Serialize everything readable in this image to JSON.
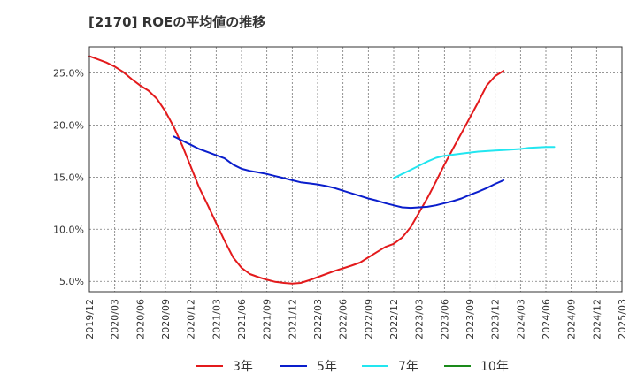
{
  "chart_data": {
    "type": "line",
    "title": "[2170]  ROEの平均値の推移",
    "xlabel": "",
    "ylabel": "",
    "ylim": [
      4.0,
      27.5
    ],
    "y_ticks": [
      {
        "value": 5,
        "label": "5.0%"
      },
      {
        "value": 10,
        "label": "10.0%"
      },
      {
        "value": 15,
        "label": "15.0%"
      },
      {
        "value": 20,
        "label": "20.0%"
      },
      {
        "value": 25,
        "label": "25.0%"
      }
    ],
    "x_ticks": [
      "2019/12",
      "2020/03",
      "2020/06",
      "2020/09",
      "2020/12",
      "2021/03",
      "2021/06",
      "2021/09",
      "2021/12",
      "2022/03",
      "2022/06",
      "2022/09",
      "2022/12",
      "2023/03",
      "2023/06",
      "2023/09",
      "2023/12",
      "2024/03",
      "2024/06",
      "2024/09",
      "2024/12",
      "2025/03"
    ],
    "series": [
      {
        "name": "3年",
        "color": "#e31a1c",
        "points": [
          [
            0,
            26.6
          ],
          [
            0.33,
            26.3
          ],
          [
            0.67,
            26.0
          ],
          [
            1,
            25.6
          ],
          [
            1.33,
            25.1
          ],
          [
            1.67,
            24.4
          ],
          [
            2,
            23.8
          ],
          [
            2.33,
            23.3
          ],
          [
            2.67,
            22.5
          ],
          [
            3,
            21.3
          ],
          [
            3.33,
            19.8
          ],
          [
            3.67,
            18.0
          ],
          [
            4,
            16.0
          ],
          [
            4.33,
            14.0
          ],
          [
            4.67,
            12.3
          ],
          [
            5,
            10.6
          ],
          [
            5.33,
            8.9
          ],
          [
            5.67,
            7.3
          ],
          [
            6,
            6.3
          ],
          [
            6.33,
            5.7
          ],
          [
            6.67,
            5.4
          ],
          [
            7,
            5.15
          ],
          [
            7.33,
            4.95
          ],
          [
            7.67,
            4.85
          ],
          [
            8,
            4.78
          ],
          [
            8.33,
            4.85
          ],
          [
            8.67,
            5.1
          ],
          [
            9,
            5.4
          ],
          [
            9.33,
            5.7
          ],
          [
            9.67,
            6.0
          ],
          [
            10,
            6.25
          ],
          [
            10.33,
            6.5
          ],
          [
            10.67,
            6.8
          ],
          [
            11,
            7.3
          ],
          [
            11.33,
            7.8
          ],
          [
            11.67,
            8.3
          ],
          [
            12,
            8.6
          ],
          [
            12.33,
            9.2
          ],
          [
            12.67,
            10.2
          ],
          [
            13,
            11.6
          ],
          [
            13.33,
            13.0
          ],
          [
            13.67,
            14.6
          ],
          [
            14,
            16.2
          ],
          [
            14.33,
            17.7
          ],
          [
            14.67,
            19.2
          ],
          [
            15,
            20.7
          ],
          [
            15.33,
            22.2
          ],
          [
            15.67,
            23.8
          ],
          [
            16,
            24.7
          ],
          [
            16.33,
            25.2
          ]
        ]
      },
      {
        "name": "5年",
        "color": "#0a1ecc",
        "points": [
          [
            3.33,
            18.9
          ],
          [
            3.67,
            18.5
          ],
          [
            4,
            18.1
          ],
          [
            4.33,
            17.7
          ],
          [
            4.67,
            17.4
          ],
          [
            5,
            17.1
          ],
          [
            5.33,
            16.8
          ],
          [
            5.67,
            16.2
          ],
          [
            6,
            15.8
          ],
          [
            6.33,
            15.6
          ],
          [
            6.67,
            15.45
          ],
          [
            7,
            15.3
          ],
          [
            7.33,
            15.1
          ],
          [
            7.67,
            14.9
          ],
          [
            8,
            14.7
          ],
          [
            8.33,
            14.5
          ],
          [
            8.67,
            14.4
          ],
          [
            9,
            14.3
          ],
          [
            9.33,
            14.15
          ],
          [
            9.67,
            13.95
          ],
          [
            10,
            13.7
          ],
          [
            10.33,
            13.45
          ],
          [
            10.67,
            13.2
          ],
          [
            11,
            12.95
          ],
          [
            11.33,
            12.75
          ],
          [
            11.67,
            12.5
          ],
          [
            12,
            12.3
          ],
          [
            12.33,
            12.1
          ],
          [
            12.67,
            12.05
          ],
          [
            13,
            12.1
          ],
          [
            13.33,
            12.15
          ],
          [
            13.67,
            12.3
          ],
          [
            14,
            12.5
          ],
          [
            14.33,
            12.7
          ],
          [
            14.67,
            12.95
          ],
          [
            15,
            13.3
          ],
          [
            15.33,
            13.6
          ],
          [
            15.67,
            13.95
          ],
          [
            16,
            14.35
          ],
          [
            16.33,
            14.7
          ]
        ]
      },
      {
        "name": "7年",
        "color": "#22e6f0",
        "points": [
          [
            12,
            14.9
          ],
          [
            12.33,
            15.3
          ],
          [
            12.67,
            15.7
          ],
          [
            13,
            16.1
          ],
          [
            13.33,
            16.5
          ],
          [
            13.67,
            16.85
          ],
          [
            14,
            17.05
          ],
          [
            14.33,
            17.15
          ],
          [
            14.67,
            17.25
          ],
          [
            15,
            17.35
          ],
          [
            15.33,
            17.45
          ],
          [
            15.67,
            17.5
          ],
          [
            16,
            17.55
          ],
          [
            16.33,
            17.6
          ],
          [
            16.67,
            17.65
          ],
          [
            17,
            17.7
          ],
          [
            17.33,
            17.8
          ],
          [
            17.67,
            17.85
          ],
          [
            18,
            17.9
          ],
          [
            18.33,
            17.9
          ]
        ]
      },
      {
        "name": "10年",
        "color": "#1a8a1a",
        "points": []
      }
    ],
    "legend": "bottom"
  }
}
